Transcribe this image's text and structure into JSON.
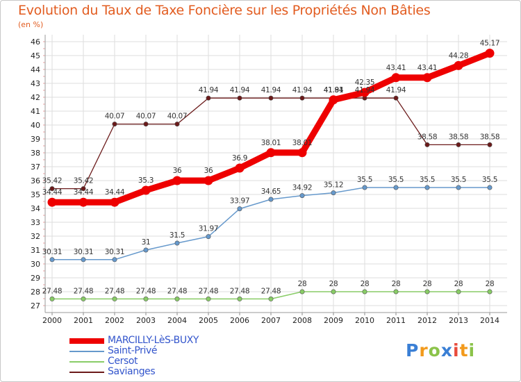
{
  "chart_data": {
    "type": "line",
    "title": "Evolution du Taux de Taxe Foncière sur les Propriétés Non Bâties",
    "ylabel": "(en %)",
    "xlabel": "",
    "ylim": [
      27,
      46
    ],
    "yticks": [
      "27",
      "28",
      "29",
      "30",
      "31",
      "32",
      "33",
      "34",
      "35",
      "36",
      "37",
      "38",
      "39",
      "40",
      "41",
      "42",
      "43",
      "44",
      "45",
      "46"
    ],
    "categories": [
      "2000",
      "2001",
      "2002",
      "2003",
      "2004",
      "2005",
      "2006",
      "2007",
      "2008",
      "2009",
      "2010",
      "2011",
      "2012",
      "2013",
      "2014"
    ],
    "grid": true,
    "series": [
      {
        "name": "Savianges",
        "color": "#6b1a1a",
        "values": [
          35.42,
          35.42,
          40.07,
          40.07,
          40.07,
          41.94,
          41.94,
          41.94,
          41.94,
          41.94,
          41.94,
          41.94,
          38.58,
          38.58,
          38.58
        ],
        "labels": [
          "35.42",
          "35.42",
          "40.07",
          "40.07",
          "40.07",
          "41.94",
          "41.94",
          "41.94",
          "41.94",
          "41.94",
          "41.94",
          "41.94",
          "38.58",
          "38.58",
          "38.58"
        ]
      },
      {
        "name": "Cersot",
        "color": "#88cc66",
        "values": [
          27.48,
          27.48,
          27.48,
          27.48,
          27.48,
          27.48,
          27.48,
          27.48,
          28,
          28,
          28,
          28,
          28,
          28,
          28
        ],
        "labels": [
          "27.48",
          "27.48",
          "27.48",
          "27.48",
          "27.48",
          "27.48",
          "27.48",
          "27.48",
          "28",
          "28",
          "28",
          "28",
          "28",
          "28",
          "28"
        ]
      },
      {
        "name": "Saint-Privé",
        "color": "#6699cc",
        "values": [
          30.31,
          30.31,
          30.31,
          31,
          31.5,
          31.97,
          33.97,
          34.65,
          34.92,
          35.12,
          35.5,
          35.5,
          35.5,
          35.5,
          35.5
        ],
        "labels": [
          "30.31",
          "30.31",
          "30.31",
          "31",
          "31.5",
          "31.97",
          "33.97",
          "34.65",
          "34.92",
          "35.12",
          "35.5",
          "35.5",
          "35.5",
          "35.5",
          "35.5"
        ]
      },
      {
        "name": "MARCILLY-LèS-BUXY",
        "color": "#ee0000",
        "values": [
          34.44,
          34.44,
          34.44,
          35.3,
          36,
          36,
          36.9,
          38.01,
          38.01,
          41.81,
          42.35,
          43.41,
          43.41,
          44.28,
          45.17
        ],
        "labels": [
          "34.44",
          "34.44",
          "34.44",
          "35.3",
          "36",
          "36",
          "36.9",
          "38.01",
          "38.01",
          "41.81",
          "42.35",
          "43.41",
          "43.41",
          "44.28",
          "45.17"
        ]
      }
    ],
    "legend": {
      "placement": "bottom-left",
      "items": [
        {
          "name": "MARCILLY-LèS-BUXY",
          "color": "#ee0000"
        },
        {
          "name": "Saint-Privé",
          "color": "#6699cc"
        },
        {
          "name": "Cersot",
          "color": "#88cc66"
        },
        {
          "name": "Savianges",
          "color": "#6b1a1a"
        }
      ]
    }
  },
  "logo": {
    "letters": [
      "P",
      "r",
      "o",
      "x",
      "i",
      "t",
      "i"
    ],
    "colors": [
      "#3a7fd5",
      "#f29a1c",
      "#8bc34a",
      "#3a7fd5",
      "#e84b3c",
      "#f29a1c",
      "#8bc34a"
    ]
  }
}
